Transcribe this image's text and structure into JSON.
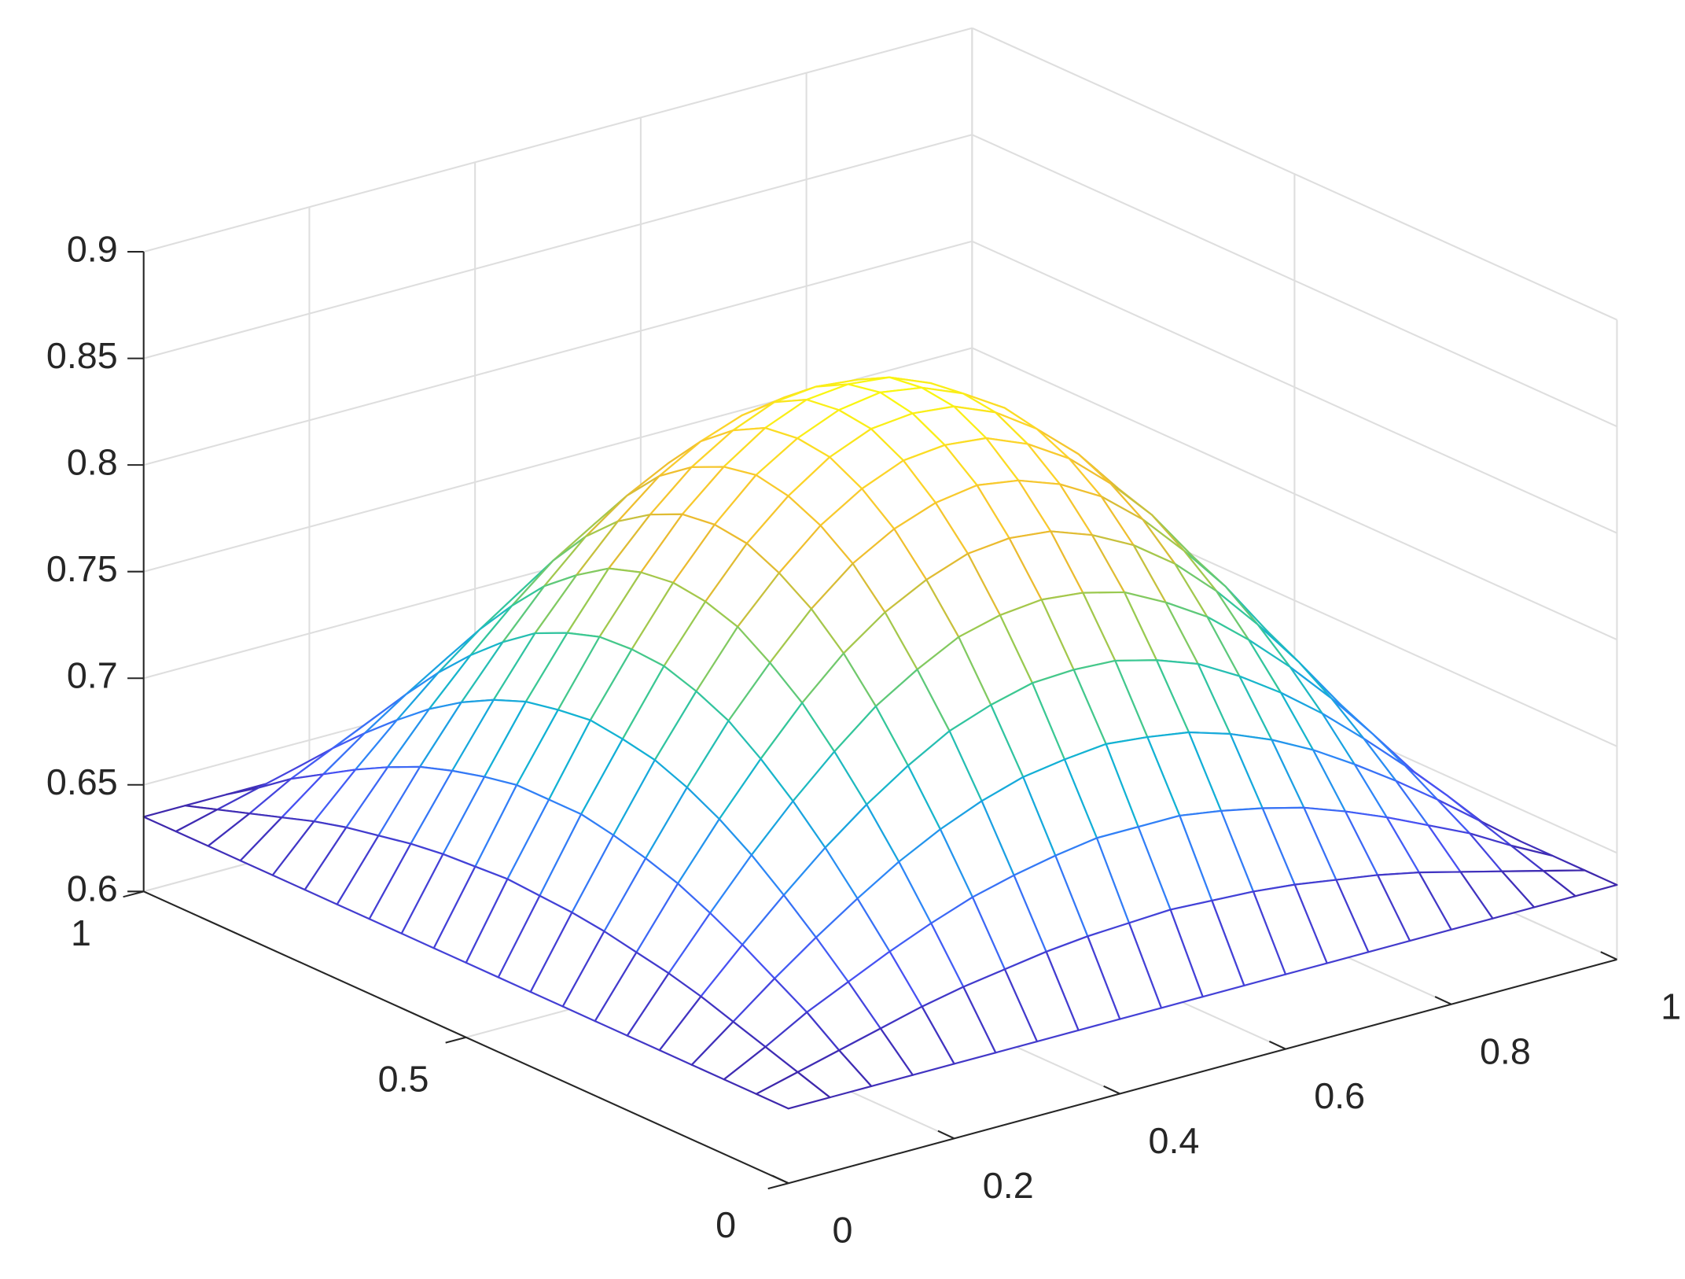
{
  "chart_data": {
    "type": "mesh",
    "x": [
      0,
      0.05,
      0.1,
      0.15,
      0.2,
      0.25,
      0.3,
      0.35,
      0.4,
      0.45,
      0.5,
      0.55,
      0.6,
      0.65,
      0.7,
      0.75,
      0.8,
      0.85,
      0.9,
      0.95,
      1
    ],
    "y": [
      0,
      0.05,
      0.1,
      0.15,
      0.2,
      0.25,
      0.3,
      0.35,
      0.4,
      0.45,
      0.5,
      0.55,
      0.6,
      0.65,
      0.7,
      0.75,
      0.8,
      0.85,
      0.9,
      0.95,
      1
    ],
    "z": [
      [
        0.635,
        0.635,
        0.635,
        0.635,
        0.635,
        0.635,
        0.635,
        0.635,
        0.635,
        0.635,
        0.635,
        0.635,
        0.635,
        0.635,
        0.635,
        0.635,
        0.635,
        0.635,
        0.635,
        0.635,
        0.635
      ],
      [
        0.635,
        0.64,
        0.645,
        0.65,
        0.655,
        0.659,
        0.662,
        0.665,
        0.667,
        0.668,
        0.669,
        0.668,
        0.667,
        0.665,
        0.662,
        0.659,
        0.655,
        0.65,
        0.645,
        0.64,
        0.635
      ],
      [
        0.635,
        0.645,
        0.656,
        0.665,
        0.674,
        0.682,
        0.689,
        0.694,
        0.698,
        0.701,
        0.701,
        0.701,
        0.698,
        0.694,
        0.689,
        0.682,
        0.674,
        0.665,
        0.656,
        0.645,
        0.635
      ],
      [
        0.635,
        0.65,
        0.665,
        0.679,
        0.692,
        0.704,
        0.714,
        0.722,
        0.728,
        0.731,
        0.733,
        0.731,
        0.728,
        0.722,
        0.714,
        0.704,
        0.692,
        0.679,
        0.665,
        0.65,
        0.635
      ],
      [
        0.635,
        0.655,
        0.674,
        0.692,
        0.709,
        0.724,
        0.737,
        0.748,
        0.755,
        0.76,
        0.761,
        0.76,
        0.755,
        0.748,
        0.737,
        0.724,
        0.709,
        0.692,
        0.674,
        0.655,
        0.635
      ],
      [
        0.635,
        0.659,
        0.682,
        0.704,
        0.724,
        0.742,
        0.758,
        0.77,
        0.78,
        0.785,
        0.787,
        0.785,
        0.78,
        0.77,
        0.758,
        0.742,
        0.724,
        0.704,
        0.682,
        0.659,
        0.635
      ],
      [
        0.635,
        0.662,
        0.689,
        0.714,
        0.737,
        0.758,
        0.776,
        0.79,
        0.8,
        0.807,
        0.809,
        0.807,
        0.8,
        0.79,
        0.776,
        0.758,
        0.737,
        0.714,
        0.689,
        0.662,
        0.635
      ],
      [
        0.635,
        0.665,
        0.694,
        0.722,
        0.748,
        0.77,
        0.79,
        0.806,
        0.817,
        0.824,
        0.827,
        0.824,
        0.817,
        0.806,
        0.79,
        0.77,
        0.748,
        0.722,
        0.694,
        0.665,
        0.635
      ],
      [
        0.635,
        0.667,
        0.698,
        0.728,
        0.755,
        0.78,
        0.8,
        0.817,
        0.829,
        0.837,
        0.839,
        0.837,
        0.829,
        0.817,
        0.8,
        0.78,
        0.755,
        0.728,
        0.698,
        0.667,
        0.635
      ],
      [
        0.635,
        0.668,
        0.701,
        0.731,
        0.76,
        0.785,
        0.807,
        0.824,
        0.837,
        0.845,
        0.847,
        0.845,
        0.837,
        0.824,
        0.807,
        0.785,
        0.76,
        0.731,
        0.701,
        0.668,
        0.635
      ],
      [
        0.635,
        0.669,
        0.701,
        0.733,
        0.761,
        0.787,
        0.809,
        0.827,
        0.839,
        0.847,
        0.85,
        0.847,
        0.839,
        0.827,
        0.809,
        0.787,
        0.761,
        0.733,
        0.701,
        0.669,
        0.635
      ],
      [
        0.635,
        0.668,
        0.701,
        0.731,
        0.76,
        0.785,
        0.807,
        0.824,
        0.837,
        0.845,
        0.847,
        0.845,
        0.837,
        0.824,
        0.807,
        0.785,
        0.76,
        0.731,
        0.701,
        0.668,
        0.635
      ],
      [
        0.635,
        0.667,
        0.698,
        0.728,
        0.755,
        0.78,
        0.8,
        0.817,
        0.829,
        0.837,
        0.839,
        0.837,
        0.829,
        0.817,
        0.8,
        0.78,
        0.755,
        0.728,
        0.698,
        0.667,
        0.635
      ],
      [
        0.635,
        0.665,
        0.694,
        0.722,
        0.748,
        0.77,
        0.79,
        0.806,
        0.817,
        0.824,
        0.827,
        0.824,
        0.817,
        0.806,
        0.79,
        0.77,
        0.748,
        0.722,
        0.694,
        0.665,
        0.635
      ],
      [
        0.635,
        0.662,
        0.689,
        0.714,
        0.737,
        0.758,
        0.776,
        0.79,
        0.8,
        0.807,
        0.809,
        0.807,
        0.8,
        0.79,
        0.776,
        0.758,
        0.737,
        0.714,
        0.689,
        0.662,
        0.635
      ],
      [
        0.635,
        0.659,
        0.682,
        0.704,
        0.724,
        0.742,
        0.758,
        0.77,
        0.78,
        0.785,
        0.787,
        0.785,
        0.78,
        0.77,
        0.758,
        0.742,
        0.724,
        0.704,
        0.682,
        0.659,
        0.635
      ],
      [
        0.635,
        0.655,
        0.674,
        0.692,
        0.709,
        0.724,
        0.737,
        0.748,
        0.755,
        0.76,
        0.761,
        0.76,
        0.755,
        0.748,
        0.737,
        0.724,
        0.709,
        0.692,
        0.674,
        0.655,
        0.635
      ],
      [
        0.635,
        0.65,
        0.665,
        0.679,
        0.692,
        0.704,
        0.714,
        0.722,
        0.728,
        0.731,
        0.733,
        0.731,
        0.728,
        0.722,
        0.714,
        0.704,
        0.692,
        0.679,
        0.665,
        0.65,
        0.635
      ],
      [
        0.635,
        0.645,
        0.656,
        0.665,
        0.674,
        0.682,
        0.689,
        0.694,
        0.698,
        0.701,
        0.701,
        0.701,
        0.698,
        0.694,
        0.689,
        0.682,
        0.674,
        0.665,
        0.656,
        0.645,
        0.635
      ],
      [
        0.635,
        0.64,
        0.645,
        0.65,
        0.655,
        0.659,
        0.662,
        0.665,
        0.667,
        0.668,
        0.669,
        0.668,
        0.667,
        0.665,
        0.662,
        0.659,
        0.655,
        0.65,
        0.645,
        0.64,
        0.635
      ],
      [
        0.635,
        0.635,
        0.635,
        0.635,
        0.635,
        0.635,
        0.635,
        0.635,
        0.635,
        0.635,
        0.635,
        0.635,
        0.635,
        0.635,
        0.635,
        0.635,
        0.635,
        0.635,
        0.635,
        0.635,
        0.635
      ]
    ],
    "xlim": [
      0,
      1
    ],
    "xticks": [
      0,
      0.2,
      0.4,
      0.6,
      0.8,
      1
    ],
    "ylim": [
      0,
      1
    ],
    "yticks": [
      0,
      0.5,
      1
    ],
    "zlim": [
      0.6,
      0.9
    ],
    "zticks": [
      0.6,
      0.65,
      0.7,
      0.75,
      0.8,
      0.85,
      0.9
    ],
    "grid": true,
    "colormap": "parula"
  }
}
